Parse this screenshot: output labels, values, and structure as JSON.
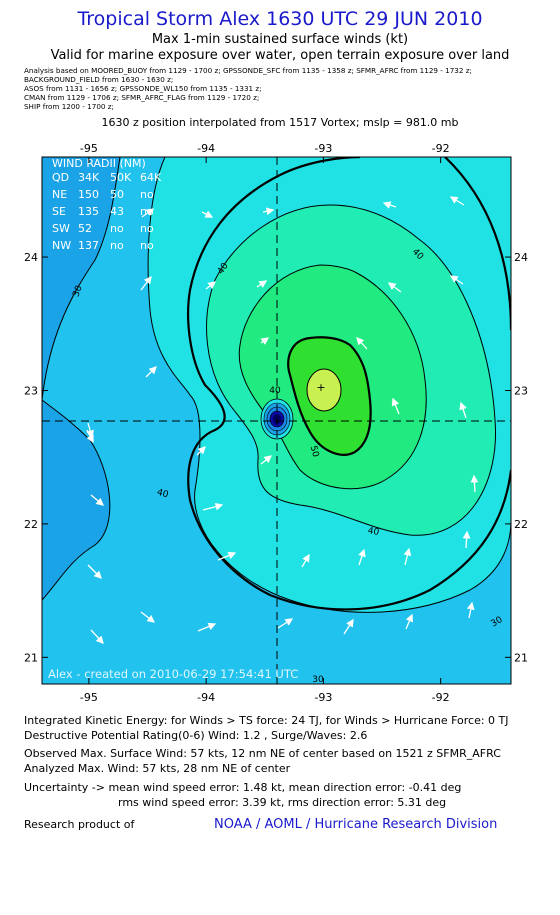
{
  "header": {
    "title": "Tropical Storm Alex 1630 UTC 29 JUN 2010",
    "subtitle1": "Max 1-min sustained surface winds (kt)",
    "subtitle2": "Valid for marine exposure over water, open terrain exposure over land"
  },
  "sources": [
    "Analysis based on   MOORED_BUOY from 1129 - 1700 z;  GPSSONDE_SFC from 1135 - 1358 z;  SFMR_AFRC from 1129 - 1732 z;",
    "BACKGROUND_FIELD from 1630 - 1630 z;",
    "ASOS from 1131 - 1656 z;  GPSSONDE_WL150 from 1135 - 1331 z;",
    "CMAN from 1129 - 1706 z;   SFMR_AFRC_FLAG from 1129 - 1720 z;",
    "SHIP from 1200 - 1700 z;"
  ],
  "position_note": "1630 z position interpolated from 1517 Vortex; mslp = 981.0 mb",
  "chart_data": {
    "type": "heatmap",
    "x_ticks": [
      "-95",
      "-94",
      "-93",
      "-92"
    ],
    "y_ticks": [
      "24",
      "23",
      "22",
      "21"
    ],
    "xlim": [
      -95.4,
      -91.4
    ],
    "ylim": [
      20.8,
      24.75
    ],
    "center": {
      "lon": -93.35,
      "lat": 22.75
    },
    "max_wind_marker": {
      "lon": -92.97,
      "lat": 23.02
    },
    "contour_labels": [
      "30",
      "40",
      "40",
      "40",
      "30",
      "40",
      "50",
      "30",
      "40"
    ],
    "colors": {
      "fill_20": "#1a88e8",
      "fill_25": "#1aa3e6",
      "fill_30": "#22c2ee",
      "fill_35": "#20e2e4",
      "fill_40": "#20ecb4",
      "fill_45": "#20ea80",
      "fill_50": "#30e030",
      "fill_55": "#c8f050",
      "eye": "#0a0aa0",
      "contour": "#000000",
      "title": "#1a1acc"
    },
    "wind_radii": {
      "title": "WIND RADII (NM)",
      "header": [
        "QD",
        "34K",
        "50K",
        "64K"
      ],
      "rows": [
        [
          "NE",
          "150",
          "50",
          "no"
        ],
        [
          "SE",
          "135",
          "43",
          "no"
        ],
        [
          "SW",
          "52",
          "no",
          "no"
        ],
        [
          "NW",
          "137",
          "no",
          "no"
        ]
      ]
    },
    "credit": "Alex  -  created on 2010-06-29  17:54:41 UTC"
  },
  "footer": {
    "ike": "Integrated Kinetic Energy:  for Winds > TS force: 24 TJ,  for Winds > Hurricane Force: 0 TJ",
    "dpr": "Destructive Potential Rating(0-6)   Wind: 1.2 , Surge/Waves: 2.6",
    "observed": "Observed Max. Surface Wind: 57 kts, 12 nm NE of center based on 1521 z SFMR_AFRC",
    "analyzed": "Analyzed Max. Wind: 57 kts, 28 nm NE of center",
    "uncertainty1": "Uncertainty -> mean wind speed error: 1.48 kt,   mean direction error:  -0.41 deg",
    "uncertainty2": "rms wind speed error: 3.39 kt,   rms direction error: 5.31 deg",
    "research": "Research product of",
    "org": "NOAA / AOML / Hurricane Research Division"
  }
}
